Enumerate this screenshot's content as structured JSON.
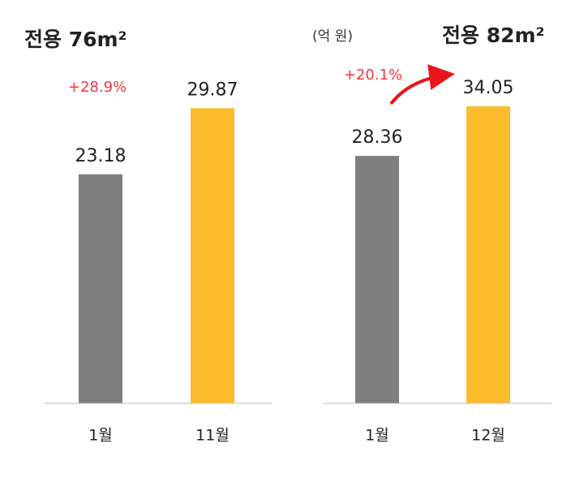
{
  "chart_data": [
    {
      "type": "bar",
      "title": "전용 76m²",
      "categories": [
        "1월",
        "11월"
      ],
      "values": [
        23.18,
        29.87
      ],
      "colors": [
        "#7f7f7f",
        "#fbbc2b"
      ],
      "ylim": [
        0,
        40
      ],
      "annotation": "+28.9%"
    },
    {
      "type": "bar",
      "title": "전용 82m²",
      "unit": "(억 원)",
      "categories": [
        "1월",
        "12월"
      ],
      "values": [
        28.36,
        34.05
      ],
      "colors": [
        "#7f7f7f",
        "#fbbc2b"
      ],
      "ylim": [
        0,
        40
      ],
      "annotation": "+20.1%"
    }
  ]
}
